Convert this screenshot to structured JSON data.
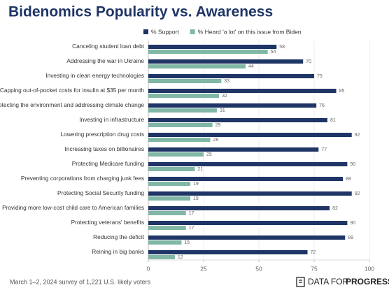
{
  "chart_data": {
    "type": "hbar",
    "title": "Bidenomics Popularity vs. Awareness",
    "categories": [
      "Canceling student loan debt",
      "Addressing the war in Ukraine",
      "Investing in clean energy technologies",
      "Capping out-of-pocket costs for insulin at $35 per month",
      "Protecting the environment and addressing climate change",
      "Investing in infrastructure",
      "Lowering prescription drug costs",
      "Increasing taxes on billionaires",
      "Protecting Medicare funding",
      "Preventing corporations from charging junk fees",
      "Protecting Social Security funding",
      "Providing more low-cost child care to American families",
      "Protecting veterans' benefits",
      "Reducing the deficit",
      "Reining in big banks"
    ],
    "series": [
      {
        "name": "% Support",
        "color": "#1f3566",
        "values": [
          58,
          70,
          75,
          85,
          76,
          81,
          92,
          77,
          90,
          88,
          92,
          82,
          90,
          89,
          72
        ]
      },
      {
        "name": "% Heard 'a lot' on this issue from Biden",
        "color": "#80b7a6",
        "values": [
          54,
          44,
          33,
          32,
          31,
          29,
          28,
          25,
          21,
          19,
          19,
          17,
          17,
          15,
          12
        ]
      }
    ],
    "xlim": [
      0,
      100
    ],
    "xticks": [
      0,
      25,
      50,
      75,
      100
    ],
    "grid": true,
    "legend": "top",
    "footnote": "March 1–2, 2024 survey of 1,221 U.S. likely voters",
    "branding": [
      "DATA FOR",
      "PROGRESS"
    ]
  }
}
